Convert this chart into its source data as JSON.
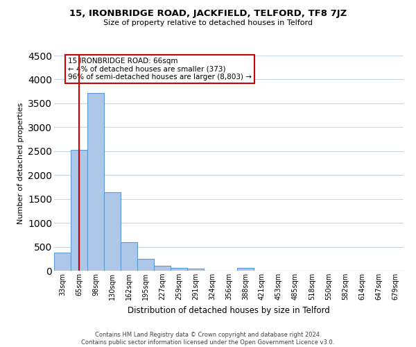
{
  "title": "15, IRONBRIDGE ROAD, JACKFIELD, TELFORD, TF8 7JZ",
  "subtitle": "Size of property relative to detached houses in Telford",
  "xlabel": "Distribution of detached houses by size in Telford",
  "ylabel": "Number of detached properties",
  "categories": [
    "33sqm",
    "65sqm",
    "98sqm",
    "130sqm",
    "162sqm",
    "195sqm",
    "227sqm",
    "259sqm",
    "291sqm",
    "324sqm",
    "356sqm",
    "388sqm",
    "421sqm",
    "453sqm",
    "485sqm",
    "518sqm",
    "550sqm",
    "582sqm",
    "614sqm",
    "647sqm",
    "679sqm"
  ],
  "values": [
    380,
    2520,
    3720,
    1640,
    600,
    245,
    105,
    60,
    50,
    0,
    0,
    65,
    0,
    0,
    0,
    0,
    0,
    0,
    0,
    0,
    0
  ],
  "bar_color": "#aec6e8",
  "bar_edge_color": "#5b9bd5",
  "ylim": [
    0,
    4500
  ],
  "yticks": [
    0,
    500,
    1000,
    1500,
    2000,
    2500,
    3000,
    3500,
    4000,
    4500
  ],
  "vline_x": 1,
  "vline_color": "#cc0000",
  "annotation_title": "15 IRONBRIDGE ROAD: 66sqm",
  "annotation_line1": "← 4% of detached houses are smaller (373)",
  "annotation_line2": "96% of semi-detached houses are larger (8,803) →",
  "annotation_box_color": "#cc0000",
  "footer_line1": "Contains HM Land Registry data © Crown copyright and database right 2024.",
  "footer_line2": "Contains public sector information licensed under the Open Government Licence v3.0.",
  "background_color": "#ffffff",
  "grid_color": "#c8d4e8"
}
